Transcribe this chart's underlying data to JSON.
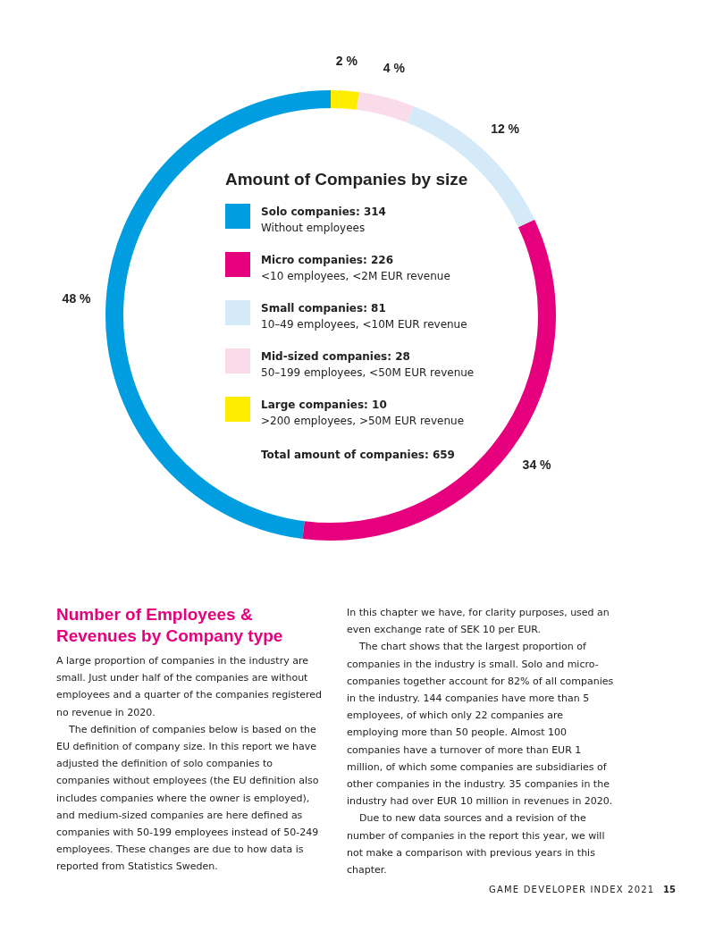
{
  "chart_data": {
    "type": "donut",
    "legend_title": "Amount of Companies by size",
    "legend": "center",
    "categories": [
      "Solo companies: 314\nWithout employees",
      "Micro companies: 226\n<10 employees, <2M EUR revenue",
      "Small companies: 81\n10–49 employees, <10M EUR revenue",
      "Mid-sized companies: 28\n50–199 employees, <50M EUR revenue",
      "Large companies: 10\n>200 employees, >50M EUR revenue"
    ],
    "values": [
      48,
      34,
      12,
      4,
      2
    ],
    "colors": [
      "#009ee0",
      "#e6007e",
      "#d4eaf9",
      "#fadbe9",
      "#ffed00"
    ],
    "value_labels": [
      "48 %",
      "34 %",
      "12 %",
      "4 %",
      "2 %"
    ],
    "annotations": [
      "Total amount of companies: 659",
      "Number of Employees & Revenues by Company type",
      "A large proportion of companies in the industry are small. Just under half of the companies are without employees and a quarter of the companies registered no revenue in 2020.",
      "The definition of companies below is based on the EU definition of company size. In this report we have adjusted the definition of solo companies to companies without employees (the EU definition also includes companies where the owner is employed), and medium-sized companies are here defined as companies with 50-199 employees instead of 50-249 employees. These changes are due to how data is reported from Statistics Sweden.",
      "In this chapter we have, for clarity purposes, used an even exchange rate of SEK 10 per EUR.",
      "The chart shows that the largest proportion of companies in the industry is small. Solo and micro-companies together account for 82% of all companies in the industry. 144 companies have more than 5 employees, of which only 22 companies are employing more than 50 people. Almost 100 companies have a turnover of more than EUR 1 million, of which some companies are subsidiaries of other companies in the industry. 35 companies in the industry had over EUR 10 million in revenues in 2020.",
      "Due to new data sources and a revision of the number of companies in the report this year, we will not make a comparison with previous years in this chapter.",
      "GAME DEVELOPER INDEX 2021",
      "15"
    ]
  }
}
